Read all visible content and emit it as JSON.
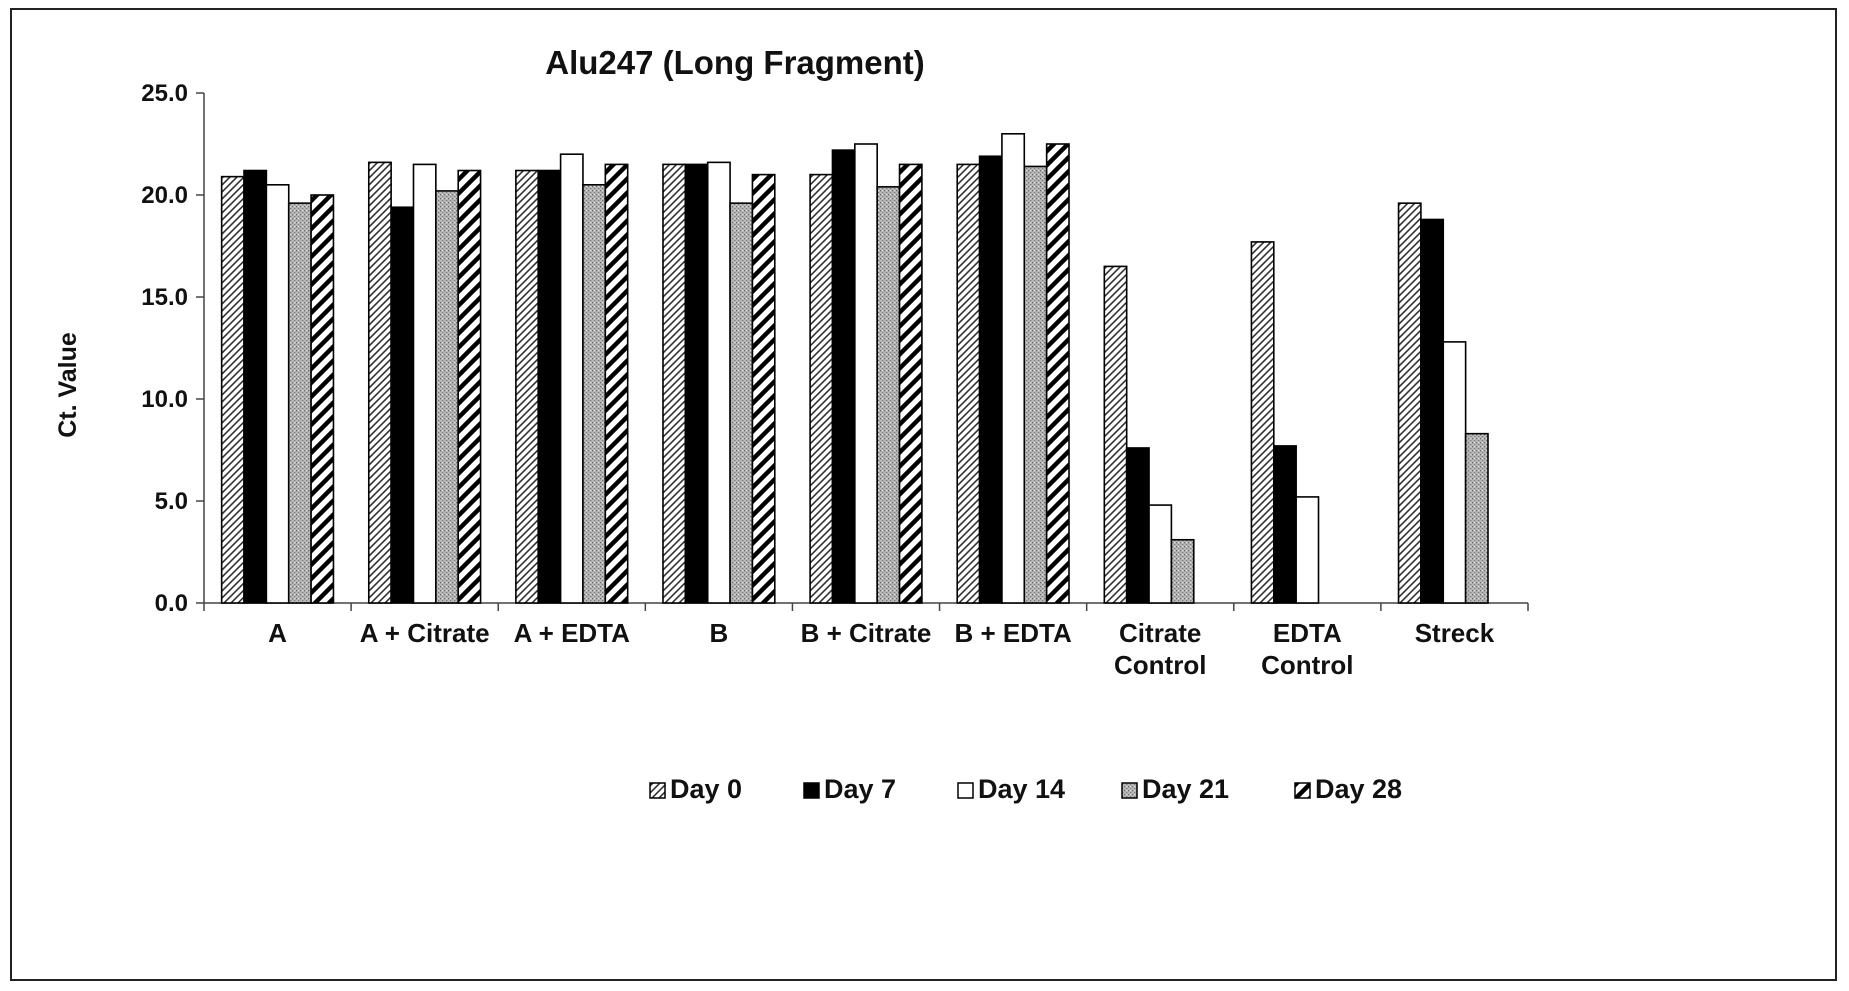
{
  "chart_data": {
    "type": "bar",
    "title": "Alu247 (Long Fragment)",
    "xlabel": "",
    "ylabel": "Ct. Value",
    "ylim": [
      0,
      25
    ],
    "yticks": [
      "0.0",
      "5.0",
      "10.0",
      "15.0",
      "20.0",
      "25.0"
    ],
    "grid": false,
    "legend_position": "bottom",
    "categories": [
      [
        "A"
      ],
      [
        "A + Citrate"
      ],
      [
        "A +  EDTA"
      ],
      [
        "B"
      ],
      [
        "B + Citrate"
      ],
      [
        "B +  EDTA"
      ],
      [
        "Citrate",
        "Control"
      ],
      [
        "EDTA",
        "Control"
      ],
      [
        "Streck"
      ]
    ],
    "series": [
      {
        "name": "Day 0",
        "pattern": "diag-thin",
        "values": [
          20.9,
          21.6,
          21.2,
          21.5,
          21.0,
          21.5,
          16.5,
          17.7,
          19.6
        ]
      },
      {
        "name": "Day 7",
        "pattern": "solid-black",
        "values": [
          21.2,
          19.4,
          21.2,
          21.5,
          22.2,
          21.9,
          7.6,
          7.7,
          18.8
        ]
      },
      {
        "name": "Day 14",
        "pattern": "white",
        "values": [
          20.5,
          21.5,
          22.0,
          21.6,
          22.5,
          23.0,
          4.8,
          5.2,
          12.8
        ]
      },
      {
        "name": "Day 21",
        "pattern": "stipple-gray",
        "values": [
          19.6,
          20.2,
          20.5,
          19.6,
          20.4,
          21.4,
          3.1,
          null,
          8.3
        ]
      },
      {
        "name": "Day 28",
        "pattern": "diag-bold",
        "values": [
          20.0,
          21.2,
          21.5,
          21.0,
          21.5,
          22.5,
          null,
          null,
          null
        ]
      }
    ]
  }
}
